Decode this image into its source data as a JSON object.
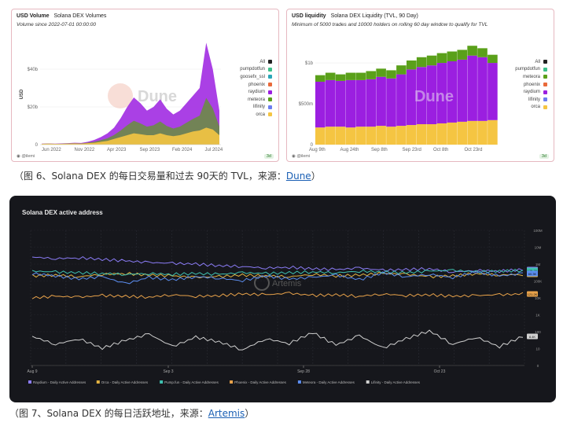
{
  "chart_data": [
    {
      "type": "area",
      "title": "USD Volume",
      "subtitle": "Solana DEX Volumes",
      "note": "Volume since 2022-07-01 00:00:00",
      "ylabel": "USD",
      "y_ticks": [
        "$40b",
        "$20b",
        "0"
      ],
      "ylim": [
        0,
        55
      ],
      "x_ticks": [
        "Jun 2022",
        "Nov 2022",
        "Apr 2023",
        "Sep 2023",
        "Feb 2024",
        "Jul 2024"
      ],
      "legend": [
        "All",
        "pumpdotfun",
        "goosefx_ssl",
        "phoenix",
        "raydium",
        "meteora",
        "lifinity",
        "orca"
      ],
      "series": [
        {
          "name": "All",
          "values": [
            0.5,
            0.6,
            0.5,
            0.6,
            0.8,
            1.0,
            0.9,
            1.5,
            2.5,
            4,
            6,
            9,
            14,
            20,
            25,
            22,
            18,
            20,
            24,
            19,
            16,
            18,
            22,
            26,
            30,
            54,
            40,
            18
          ]
        },
        {
          "name": "orca",
          "values": [
            0.4,
            0.5,
            0.4,
            0.4,
            0.5,
            0.6,
            0.5,
            0.8,
            1.0,
            1.5,
            2.0,
            3.0,
            4.0,
            5.0,
            6.0,
            5.5,
            5.0,
            5.0,
            6.0,
            5.0,
            4.5,
            5.0,
            6.0,
            7.0,
            7.5,
            9.0,
            8.0,
            5.0
          ]
        }
      ],
      "footer": "@ilemi",
      "badge": "3d"
    },
    {
      "type": "bar",
      "title": "USD liquidity",
      "subtitle": "Solana DEX Liquidity (TVL, 90 Day)",
      "note": "Minimum of 5000 trades and 10000 holders on rolling 60 day window to qualify for TVL",
      "y_ticks": [
        "$1b",
        "$500m",
        "0"
      ],
      "ylim": [
        0,
        1.27
      ],
      "x_ticks": [
        "Aug 9th",
        "Aug 24th",
        "Sep 8th",
        "Sep 23rd",
        "Oct 8th",
        "Oct 23rd"
      ],
      "legend": [
        "All",
        "pumpdotfun",
        "meteora",
        "phoenix",
        "raydium",
        "lifinity",
        "orca"
      ],
      "series": [
        {
          "name": "orca",
          "values": [
            0.21,
            0.22,
            0.22,
            0.21,
            0.22,
            0.22,
            0.23,
            0.22,
            0.23,
            0.24,
            0.25,
            0.25,
            0.26,
            0.27,
            0.28,
            0.29,
            0.29,
            0.3
          ]
        },
        {
          "name": "raydium",
          "values": [
            0.56,
            0.57,
            0.56,
            0.58,
            0.57,
            0.58,
            0.6,
            0.59,
            0.63,
            0.68,
            0.7,
            0.72,
            0.74,
            0.75,
            0.76,
            0.8,
            0.78,
            0.7
          ]
        },
        {
          "name": "meteora",
          "values": [
            0.08,
            0.09,
            0.08,
            0.09,
            0.09,
            0.1,
            0.1,
            0.1,
            0.11,
            0.11,
            0.12,
            0.12,
            0.12,
            0.12,
            0.12,
            0.12,
            0.11,
            0.1
          ]
        }
      ],
      "footer": "@ilemi",
      "badge": "3d"
    },
    {
      "type": "line",
      "title": "Solana DEX active address",
      "y_scale": "log",
      "y_ticks": [
        "100M",
        "10M",
        "1M",
        "100K",
        "10K",
        "1K",
        "100",
        "10",
        "0"
      ],
      "x_ticks": [
        "Aug 9",
        "Sep 3",
        "Sep 28",
        "Oct 23"
      ],
      "series": [
        {
          "name": "Raydium - Daily Active Addresses",
          "color": "#8b7cf6",
          "values": [
            3.4,
            3.6,
            3.5,
            3.7,
            3.9,
            4.1,
            4.2,
            4.3,
            4.5,
            4.6,
            4.8,
            4.7,
            4.9,
            5.0,
            4.8,
            5.1,
            5.0,
            4.9,
            5.3,
            5.1,
            5.2,
            5.0
          ]
        },
        {
          "name": "Orca - Daily Active Addresses",
          "color": "#e3b341",
          "values": [
            5.8,
            5.7,
            5.9,
            5.6,
            5.5,
            5.7,
            5.8,
            6.0,
            5.9,
            5.7,
            5.8,
            5.9,
            5.6,
            5.8,
            5.7,
            5.5,
            5.6,
            5.9,
            5.8,
            5.5,
            5.7,
            5.6
          ]
        },
        {
          "name": "Pump.fun - Daily Active Addresses",
          "color": "#3fc1b0",
          "values": [
            5.2,
            5.3,
            5.4,
            5.5,
            5.6,
            5.5,
            5.6,
            5.5,
            5.6,
            5.4,
            5.5,
            5.4,
            5.3,
            5.4,
            5.2,
            5.3,
            5.4,
            5.2,
            5.1,
            5.3,
            5.2,
            5.1
          ]
        },
        {
          "name": "Phoenix - Daily Active Addresses",
          "color": "#e8a24a",
          "values": [
            8.6,
            8.4,
            8.5,
            8.3,
            8.4,
            8.5,
            8.2,
            8.4,
            8.3,
            8.1,
            8.2,
            8.0,
            8.3,
            8.2,
            8.4,
            8.1,
            8.3,
            8.2,
            8.4,
            8.3,
            8.2,
            8.1
          ]
        },
        {
          "name": "Meteora - Daily Active Addresses",
          "color": "#5b8def",
          "values": [
            5.5,
            5.8,
            6.2,
            5.9,
            6.8,
            6.0,
            6.3,
            5.9,
            6.1,
            6.4,
            5.8,
            6.2,
            6.0,
            5.7,
            6.3,
            5.4,
            5.9,
            5.6,
            6.0,
            5.3,
            5.8,
            5.5
          ]
        },
        {
          "name": "Lifinity - Daily Active Addresses",
          "color": "#d0d0d0",
          "values": [
            13.5,
            14.5,
            13.8,
            15.0,
            14.0,
            13.2,
            14.8,
            13.6,
            14.2,
            15.2,
            13.8,
            14.4,
            13.0,
            14.6,
            13.4,
            15.0,
            13.8,
            12.8,
            14.5,
            13.6,
            14.8,
            13.5
          ]
        }
      ],
      "end_labels": [
        "91.9M",
        "272.7K",
        "135.7K",
        "121.2K",
        "60.3K",
        "8.4K"
      ],
      "watermark": "Artemis"
    }
  ],
  "captions": {
    "fig6_text": "（图 6、Solana DEX 的每日交易量和过去 90天的 TVL，来源：",
    "fig6_link": "Dune",
    "fig6_end": "）",
    "fig7_text": "（图 7、Solana DEX 的每日活跃地址，来源：",
    "fig7_link": "Artemis",
    "fig7_end": "）"
  },
  "colors": {
    "All": "#222222",
    "pumpdotfun": "#3cc08a",
    "goosefx_ssl": "#2aa7b8",
    "phoenix": "#e96a3a",
    "raydium": "#9b1fe0",
    "meteora": "#5aa01a",
    "lifinity": "#6b7df0",
    "orca": "#f5c542"
  }
}
